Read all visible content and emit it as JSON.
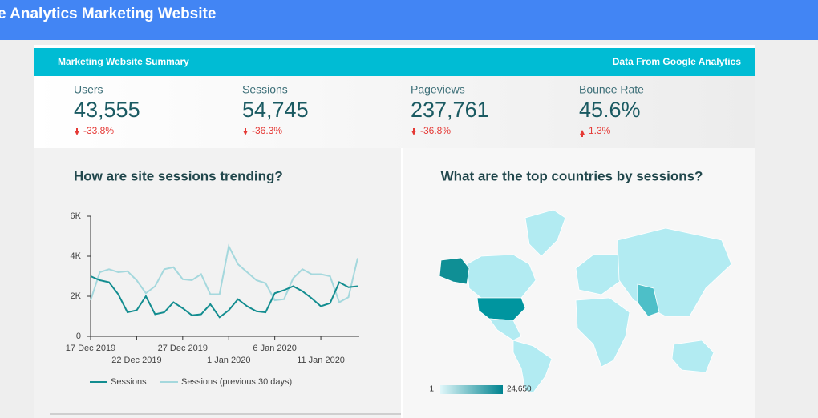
{
  "header": {
    "title": "e Analytics Marketing Website"
  },
  "summary": {
    "title": "Marketing Website Summary",
    "source": "Data From Google Analytics"
  },
  "kpis": [
    {
      "label": "Users",
      "value": "43,555",
      "change": "-33.8%"
    },
    {
      "label": "Sessions",
      "value": "54,745",
      "change": "-36.3%"
    },
    {
      "label": "Pageviews",
      "value": "237,761",
      "change": "-36.8%"
    },
    {
      "label": "Bounce Rate",
      "value": "45.6%",
      "change": "1.3%"
    }
  ],
  "chart_data": {
    "type": "line",
    "title": "How are site sessions trending?",
    "categories": [
      "2019-12-17",
      "2019-12-18",
      "2019-12-19",
      "2019-12-20",
      "2019-12-21",
      "2019-12-22",
      "2019-12-23",
      "2019-12-24",
      "2019-12-25",
      "2019-12-26",
      "2019-12-27",
      "2019-12-28",
      "2019-12-29",
      "2019-12-30",
      "2019-12-31",
      "2020-01-01",
      "2020-01-02",
      "2020-01-03",
      "2020-01-04",
      "2020-01-05",
      "2020-01-06",
      "2020-01-07",
      "2020-01-08",
      "2020-01-09",
      "2020-01-10",
      "2020-01-11",
      "2020-01-12",
      "2020-01-13",
      "2020-01-14",
      "2020-01-15"
    ],
    "xticks": [
      {
        "value": "2019-12-17",
        "label": "17 Dec 2019"
      },
      {
        "value": "2019-12-22",
        "label": "22 Dec 2019"
      },
      {
        "value": "2019-12-27",
        "label": "27 Dec 2019"
      },
      {
        "value": "2020-01-01",
        "label": "1 Jan 2020"
      },
      {
        "value": "2020-01-06",
        "label": "6 Jan 2020"
      },
      {
        "value": "2020-01-11",
        "label": "11 Jan 2020"
      }
    ],
    "series": [
      {
        "name": "Sessions",
        "color": "#138d90",
        "values": [
          3000,
          2800,
          2700,
          2100,
          1200,
          1300,
          2000,
          1100,
          1200,
          1700,
          1400,
          1050,
          1100,
          1600,
          950,
          1300,
          1850,
          1500,
          1250,
          1200,
          2150,
          2300,
          2500,
          2250,
          1900,
          1500,
          1650,
          2700,
          2450,
          2500
        ]
      },
      {
        "name": "Sessions (previous 30 days)",
        "color": "#a5d8dd",
        "values": [
          1800,
          3200,
          3350,
          3200,
          3250,
          2800,
          2150,
          2500,
          3350,
          3450,
          2850,
          2800,
          3100,
          2100,
          2100,
          4500,
          3600,
          3200,
          2800,
          2650,
          1800,
          1850,
          2900,
          3350,
          3100,
          3100,
          3000,
          1700,
          1950,
          3900
        ]
      }
    ],
    "ylim": [
      0,
      6000
    ],
    "yticks": [
      0,
      {
        "value": 2000,
        "label": "2K"
      },
      {
        "value": 4000,
        "label": "4K"
      },
      {
        "value": 6000,
        "label": "6K"
      }
    ]
  },
  "map": {
    "title": "What are the top countries by sessions?",
    "legend_min": "1",
    "legend_max": "24,650"
  }
}
